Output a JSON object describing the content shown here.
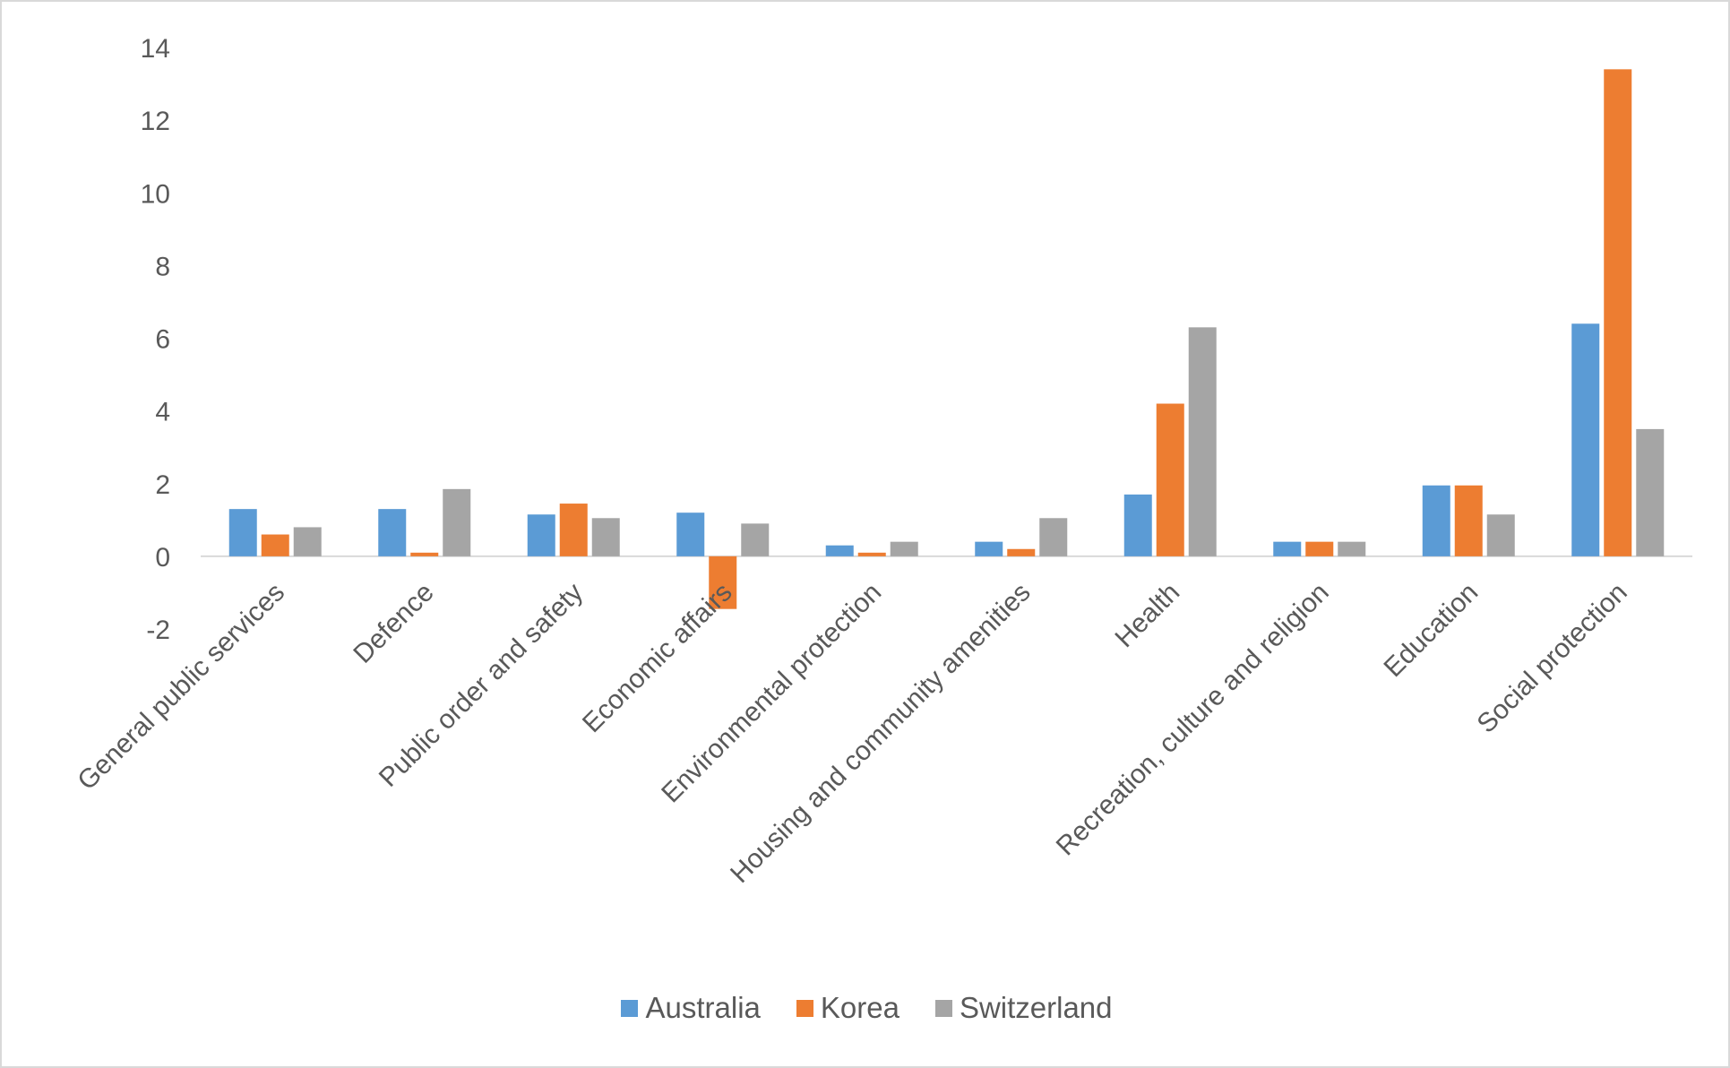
{
  "chart_data": {
    "type": "bar",
    "title": "",
    "xlabel": "",
    "ylabel": "",
    "ylim": [
      -2,
      14
    ],
    "yticks": [
      "-2",
      "0",
      "2",
      "4",
      "6",
      "8",
      "10",
      "12",
      "14"
    ],
    "ytick_values": [
      -2,
      0,
      2,
      4,
      6,
      8,
      10,
      12,
      14
    ],
    "grid": false,
    "legend_position": "bottom",
    "categories": [
      "General public services",
      "Defence",
      "Public order and safety",
      "Economic affairs",
      "Environmental protection",
      "Housing and community amenities",
      "Health",
      "Recreation, culture and religion",
      "Education",
      "Social protection"
    ],
    "series": [
      {
        "name": "Australia",
        "color": "#5B9BD5",
        "values": [
          1.3,
          1.3,
          1.15,
          1.2,
          0.3,
          0.4,
          1.7,
          0.4,
          1.95,
          6.4
        ]
      },
      {
        "name": "Korea",
        "color": "#ED7D31",
        "values": [
          0.6,
          0.1,
          1.45,
          -1.45,
          0.1,
          0.2,
          4.2,
          0.4,
          1.95,
          13.4
        ]
      },
      {
        "name": "Switzerland",
        "color": "#A5A5A5",
        "values": [
          0.8,
          1.85,
          1.05,
          0.9,
          0.4,
          1.05,
          6.3,
          0.4,
          1.15,
          3.5
        ]
      }
    ]
  }
}
